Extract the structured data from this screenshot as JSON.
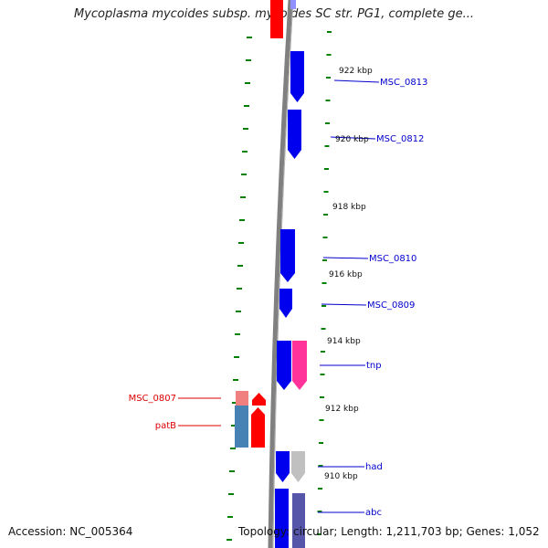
{
  "title": "Mycoplasma mycoides subsp. mycoides SC str. PG1, complete ge...",
  "footer": {
    "accession": "Accession: NC_005364",
    "summary": "Topology: circular; Length: 1,211,703 bp; Genes: 1,052"
  },
  "colors": {
    "forward_gene": "#0000ee",
    "reverse_gene": "#ff0000",
    "reverse_gene_light": "#f08080",
    "reverse_gene_steel": "#4682b4",
    "tnp": "#ff3399",
    "pseudo": "#c0c0c0",
    "backbone": "#808080",
    "tick": "#008000",
    "forward_label": "#0000cc",
    "reverse_label": "#dd0000"
  },
  "scale_labels": [
    {
      "text": "922 kbp"
    },
    {
      "text": "920 kbp"
    },
    {
      "text": "918 kbp"
    },
    {
      "text": "916 kbp"
    },
    {
      "text": "914 kbp"
    },
    {
      "text": "912 kbp"
    },
    {
      "text": "910 kbp"
    }
  ],
  "gene_labels": [
    {
      "text": "MSC_0813",
      "strand": "forward"
    },
    {
      "text": "MSC_0812",
      "strand": "forward"
    },
    {
      "text": "MSC_0810",
      "strand": "forward"
    },
    {
      "text": "MSC_0809",
      "strand": "forward"
    },
    {
      "text": "tnp",
      "strand": "forward"
    },
    {
      "text": "had",
      "strand": "forward"
    },
    {
      "text": "abc",
      "strand": "forward"
    },
    {
      "text": "MSC_0807",
      "strand": "reverse"
    },
    {
      "text": "patB",
      "strand": "reverse"
    }
  ]
}
